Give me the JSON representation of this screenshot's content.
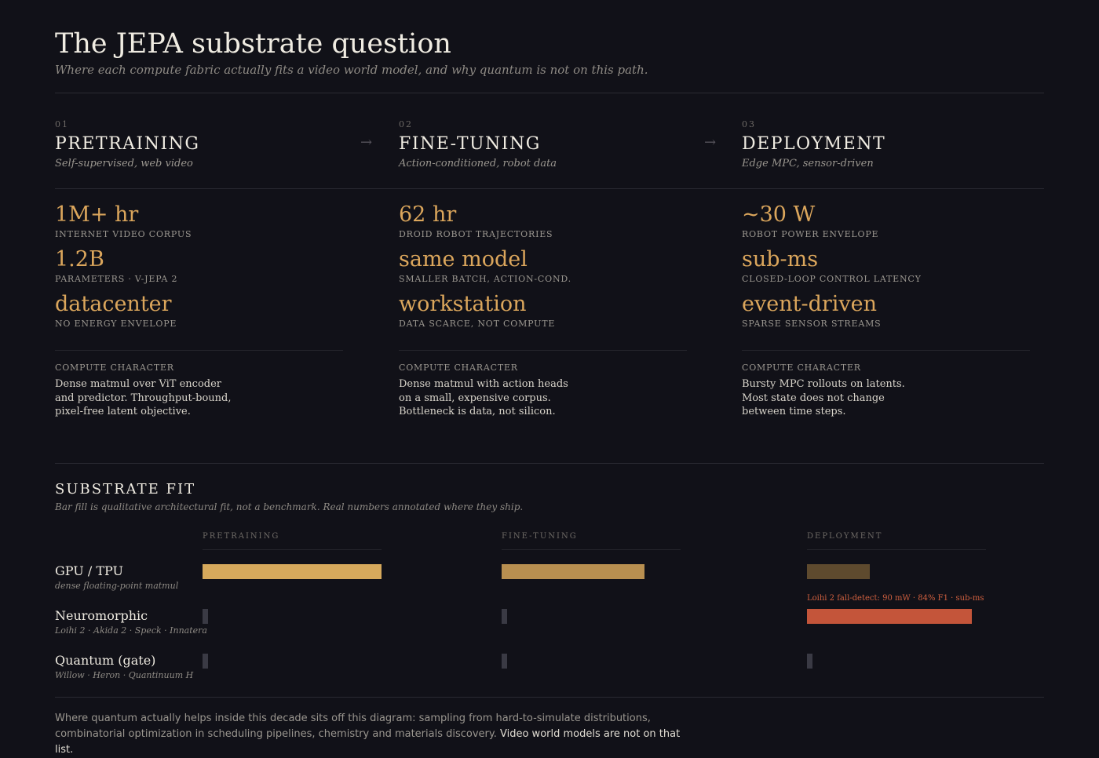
{
  "header": {
    "title": "The JEPA substrate question",
    "subtitle": "Where each compute fabric actually fits a video world model, and why quantum is not on this path."
  },
  "arrow": "→",
  "stages": [
    {
      "number": "01",
      "title": "PRETRAINING",
      "subtitle": "Self-supervised, web video",
      "metrics": [
        {
          "value": "1M+ hr",
          "label": "INTERNET VIDEO CORPUS"
        },
        {
          "value": "1.2B",
          "label": "PARAMETERS · V-JEPA 2"
        },
        {
          "value": "datacenter",
          "label": "NO ENERGY ENVELOPE"
        }
      ],
      "compute_label": "COMPUTE CHARACTER",
      "compute_text": "Dense matmul over ViT encoder and predictor. Throughput-bound, pixel-free latent objective."
    },
    {
      "number": "02",
      "title": "FINE-TUNING",
      "subtitle": "Action-conditioned, robot data",
      "metrics": [
        {
          "value": "62 hr",
          "label": "DROID ROBOT TRAJECTORIES"
        },
        {
          "value": "same model",
          "label": "SMALLER BATCH, ACTION-COND."
        },
        {
          "value": "workstation",
          "label": "DATA SCARCE, NOT COMPUTE"
        }
      ],
      "compute_label": "COMPUTE CHARACTER",
      "compute_text": "Dense matmul with action heads on a small, expensive corpus. Bottleneck is data, not silicon."
    },
    {
      "number": "03",
      "title": "DEPLOYMENT",
      "subtitle": "Edge MPC, sensor-driven",
      "metrics": [
        {
          "value": "~30 W",
          "label": "ROBOT POWER ENVELOPE"
        },
        {
          "value": "sub-ms",
          "label": "CLOSED-LOOP CONTROL LATENCY"
        },
        {
          "value": "event-driven",
          "label": "SPARSE SENSOR STREAMS"
        }
      ],
      "compute_label": "COMPUTE CHARACTER",
      "compute_text": "Bursty MPC rollouts on latents. Most state does not change between time steps."
    }
  ],
  "substrate_fit": {
    "title": "SUBSTRATE FIT",
    "subtitle": "Bar fill is qualitative architectural fit, not a benchmark. Real numbers annotated where they ship.",
    "xlim": [
      0,
      100
    ],
    "columns": [
      "PRETRAINING",
      "FINE-TUNING",
      "DEPLOYMENT"
    ],
    "rows": [
      {
        "name": "GPU / TPU",
        "sub": "dense floating-point matmul",
        "cells": [
          {
            "value": 100,
            "color": "#d6a95c"
          },
          {
            "value": 80,
            "color": "#b88f50"
          },
          {
            "value": 35,
            "color": "#5e4a2e"
          }
        ]
      },
      {
        "name": "Neuromorphic",
        "sub": "Loihi 2 · Akida 2 · Speck · Innatera",
        "cells": [
          {
            "value": 3,
            "color": "#3a3a44"
          },
          {
            "value": 3,
            "color": "#3a3a44"
          },
          {
            "value": 92,
            "color": "#c4553a",
            "annotation": "Loihi 2 fall-detect: 90 mW · 84% F1 · sub-ms"
          }
        ]
      },
      {
        "name": "Quantum (gate)",
        "sub": "Willow · Heron · Quantinuum H",
        "cells": [
          {
            "value": 3,
            "color": "#3a3a44"
          },
          {
            "value": 3,
            "color": "#3a3a44"
          },
          {
            "value": 3,
            "color": "#3a3a44"
          }
        ]
      }
    ]
  },
  "footer": {
    "text": "Where quantum actually helps inside this decade sits off this diagram: sampling from hard-to-simulate distributions, combinatorial optimization in scheduling pipelines, chemistry and materials discovery.",
    "highlight": "Video world models are not on that list."
  }
}
